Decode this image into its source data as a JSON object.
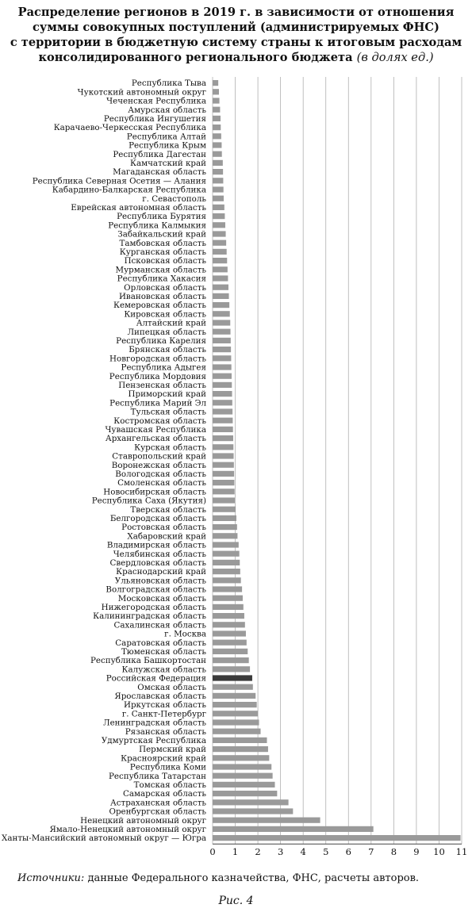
{
  "title_lines": [
    "Распределение регионов в 2019 г. в зависимости от отношения",
    "суммы совокупных поступлений (администрируемых ФНС)",
    "с территории в бюджетную систему страны к итоговым расходам",
    "консолидированного регионального бюджета"
  ],
  "title_units": "(в долях ед.)",
  "source_label": "Источники:",
  "source_text": "данные Федерального казначейства, ФНС, расчеты авторов.",
  "caption": "Рис. 4",
  "colors": {
    "bar": "#9a9a9a",
    "highlight_bar": "#3a3a3a",
    "grid": "#b0b0b0",
    "axis": "#444444"
  },
  "chart_data": {
    "type": "bar",
    "orientation": "horizontal",
    "xlim": [
      0,
      11
    ],
    "x_ticks": [
      "0",
      "1",
      "2",
      "3",
      "4",
      "5",
      "6",
      "7",
      "8",
      "9",
      "10",
      "11"
    ],
    "grid": "vertical",
    "highlight_category": "Российская Федерация",
    "categories": [
      "Республика Тыва",
      "Чукотский автономный округ",
      "Чеченская Республика",
      "Амурская область",
      "Республика Ингушетия",
      "Карачаево-Черкесская Республика",
      "Республика Алтай",
      "Республика Крым",
      "Республика Дагестан",
      "Камчатский край",
      "Магаданская область",
      "Республика Северная Осетия — Алания",
      "Кабардино-Балкарская Республика",
      "г. Севастополь",
      "Еврейская автономная область",
      "Республика Бурятия",
      "Республика Калмыкия",
      "Забайкальский край",
      "Тамбовская область",
      "Курганская область",
      "Псковская область",
      "Мурманская область",
      "Республика Хакасия",
      "Орловская область",
      "Ивановская область",
      "Кемеровская область",
      "Кировская область",
      "Алтайский край",
      "Липецкая область",
      "Республика Карелия",
      "Брянская область",
      "Новгородская область",
      "Республика Адыгея",
      "Республика Мордовия",
      "Пензенская область",
      "Приморский край",
      "Республика Марий Эл",
      "Тульская область",
      "Костромская область",
      "Чувашская Республика",
      "Архангельская область",
      "Курская область",
      "Ставропольский край",
      "Воронежская область",
      "Вологодская область",
      "Смоленская область",
      "Новосибирская область",
      "Республика Саха (Якутия)",
      "Тверская область",
      "Белгородская область",
      "Ростовская область",
      "Хабаровский край",
      "Владимирская область",
      "Челябинская область",
      "Свердловская область",
      "Краснодарский край",
      "Ульяновская область",
      "Волгоградская область",
      "Московская область",
      "Нижегородская область",
      "Калининградская область",
      "Сахалинская область",
      "г. Москва",
      "Саратовская область",
      "Тюменская область",
      "Республика Башкортостан",
      "Калужская область",
      "Российская Федерация",
      "Омская область",
      "Ярославская область",
      "Иркутская область",
      "г. Санкт-Петербург",
      "Ленинградская область",
      "Рязанская область",
      "Удмуртская Республика",
      "Пермский край",
      "Красноярский край",
      "Республика Коми",
      "Республика Татарстан",
      "Томская область",
      "Самарская область",
      "Астраханская область",
      "Оренбургская область",
      "Ненецкий автономный округ",
      "Ямало-Ненецкий автономный округ",
      "Ханты-Мансийский автономный округ — Югра"
    ],
    "values": [
      0.25,
      0.28,
      0.3,
      0.33,
      0.35,
      0.36,
      0.38,
      0.4,
      0.41,
      0.45,
      0.46,
      0.47,
      0.48,
      0.49,
      0.52,
      0.54,
      0.56,
      0.58,
      0.6,
      0.62,
      0.64,
      0.66,
      0.68,
      0.7,
      0.72,
      0.74,
      0.76,
      0.78,
      0.79,
      0.8,
      0.81,
      0.82,
      0.83,
      0.84,
      0.85,
      0.86,
      0.87,
      0.88,
      0.89,
      0.9,
      0.91,
      0.92,
      0.93,
      0.94,
      0.95,
      0.96,
      0.97,
      0.98,
      1.02,
      1.05,
      1.08,
      1.1,
      1.15,
      1.18,
      1.2,
      1.22,
      1.25,
      1.3,
      1.33,
      1.36,
      1.4,
      1.43,
      1.47,
      1.5,
      1.55,
      1.6,
      1.65,
      1.75,
      1.78,
      1.9,
      1.95,
      2.0,
      2.05,
      2.12,
      2.4,
      2.45,
      2.5,
      2.6,
      2.65,
      2.75,
      2.85,
      3.35,
      3.55,
      4.75,
      7.1,
      10.95
    ]
  }
}
